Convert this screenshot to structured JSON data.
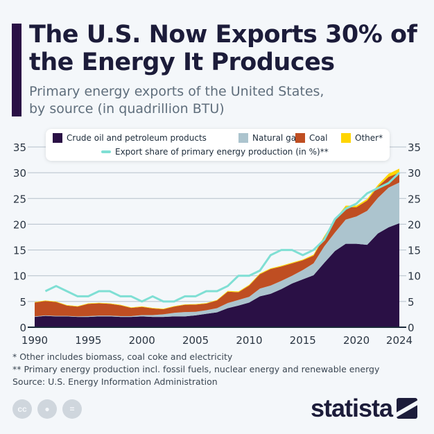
{
  "header": {
    "title": "The U.S. Now Exports 30% of the Energy It Produces",
    "subtitle_line1": "Primary energy exports of the United States,",
    "subtitle_line2": "by source (in quadrillion BTU)"
  },
  "chart_data": {
    "type": "area",
    "stacked": true,
    "x": [
      1990,
      1991,
      1992,
      1993,
      1994,
      1995,
      1996,
      1997,
      1998,
      1999,
      2000,
      2001,
      2002,
      2003,
      2004,
      2005,
      2006,
      2007,
      2008,
      2009,
      2010,
      2011,
      2012,
      2013,
      2014,
      2015,
      2016,
      2017,
      2018,
      2019,
      2020,
      2021,
      2022,
      2023,
      2024
    ],
    "x_tick_labels": [
      "1990",
      "1995",
      "2000",
      "2005",
      "2010",
      "2015",
      "2020",
      "2024"
    ],
    "y_tick_labels": [
      "0",
      "5",
      "10",
      "15",
      "20",
      "25",
      "30",
      "35"
    ],
    "ylim": [
      0,
      35
    ],
    "grid": true,
    "legend_placement": "top",
    "series": [
      {
        "name": "Crude oil and petroleum products",
        "color": "#2a1045",
        "values": [
          2.0,
          2.2,
          2.1,
          2.1,
          2.0,
          2.0,
          2.1,
          2.1,
          2.0,
          2.0,
          2.1,
          2.0,
          2.0,
          2.1,
          2.1,
          2.3,
          2.6,
          2.9,
          3.7,
          4.2,
          4.8,
          6.0,
          6.5,
          7.4,
          8.5,
          9.3,
          10.1,
          12.5,
          14.8,
          16.2,
          16.2,
          16.0,
          18.2,
          19.4,
          20.2
        ]
      },
      {
        "name": "Natural gas",
        "color": "#acc4ce",
        "values": [
          0.1,
          0.1,
          0.1,
          0.1,
          0.1,
          0.15,
          0.15,
          0.15,
          0.15,
          0.15,
          0.25,
          0.35,
          0.5,
          0.7,
          0.85,
          0.7,
          0.7,
          0.8,
          1.0,
          1.1,
          1.1,
          1.5,
          1.6,
          1.6,
          1.5,
          1.8,
          2.3,
          3.2,
          3.6,
          4.7,
          5.3,
          6.6,
          6.9,
          7.7,
          7.9
        ]
      },
      {
        "name": "Coal",
        "color": "#bf4e22",
        "values": [
          2.7,
          2.8,
          2.7,
          2.0,
          1.9,
          2.4,
          2.4,
          2.3,
          2.1,
          1.6,
          1.6,
          1.3,
          1.0,
          1.2,
          1.4,
          1.4,
          1.3,
          1.5,
          2.2,
          1.5,
          2.2,
          2.8,
          3.2,
          2.8,
          2.4,
          1.9,
          1.5,
          1.8,
          2.3,
          2.4,
          1.8,
          2.0,
          2.2,
          2.1,
          1.9
        ]
      },
      {
        "name": "Other*",
        "color": "#ffd500",
        "values": [
          0.1,
          0.1,
          0.1,
          0.1,
          0.1,
          0.1,
          0.1,
          0.1,
          0.1,
          0.1,
          0.1,
          0.1,
          0.1,
          0.1,
          0.1,
          0.1,
          0.1,
          0.1,
          0.15,
          0.15,
          0.15,
          0.15,
          0.15,
          0.15,
          0.15,
          0.15,
          0.2,
          0.2,
          0.25,
          0.3,
          0.3,
          0.3,
          0.35,
          0.6,
          0.8
        ]
      }
    ],
    "line_series": {
      "name": "Export share of primary energy production (in %)**",
      "color": "#7fdfd4",
      "x": [
        1991,
        1992,
        1993,
        1994,
        1995,
        1996,
        1997,
        1998,
        1999,
        2000,
        2001,
        2002,
        2003,
        2004,
        2005,
        2006,
        2007,
        2008,
        2009,
        2010,
        2011,
        2012,
        2013,
        2014,
        2015,
        2016,
        2017,
        2018,
        2019,
        2020,
        2021,
        2022,
        2023,
        2024
      ],
      "values": [
        7,
        8,
        7,
        6,
        6,
        7,
        7,
        6,
        6,
        5,
        6,
        5,
        5,
        6,
        6,
        7,
        7,
        8,
        10,
        10,
        11,
        14,
        15,
        15,
        14,
        15,
        17,
        21,
        23,
        24,
        26,
        27,
        28,
        30
      ]
    }
  },
  "notes": {
    "note1": "*   Other includes biomass, coal coke and electricity",
    "note2": "** Primary energy production incl. fossil fuels, nuclear energy and renewable energy",
    "source": "Source: U.S. Energy Information Administration"
  },
  "footer": {
    "logo": "statista",
    "icons": [
      "cc-icon",
      "person-icon",
      "equals-icon"
    ]
  }
}
